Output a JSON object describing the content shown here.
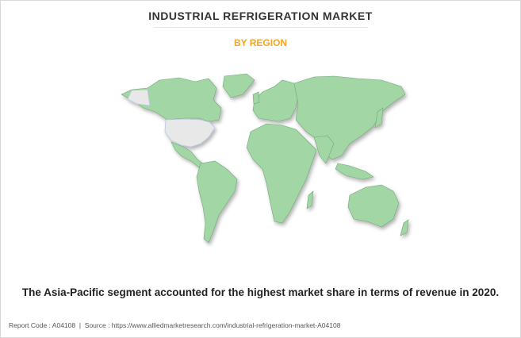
{
  "header": {
    "title": "INDUSTRIAL REFRIGERATION MARKET",
    "subtitle": "BY REGION"
  },
  "caption": "The Asia-Pacific segment accounted for the highest market share in terms of revenue in 2020.",
  "footer": "Report Code : A04108  |  Source : https://www.alliedmarketresearch.com/industrial-refrigeration-market-A04108"
}
